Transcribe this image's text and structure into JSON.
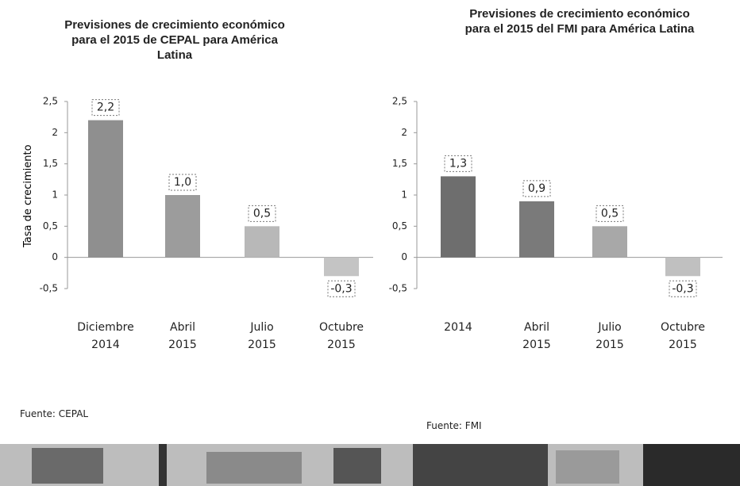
{
  "chart_data": [
    {
      "type": "bar",
      "title": "Previsiones de crecimiento económico para el 2015 de CEPAL para América Latina",
      "y_label": "Tasa de crecimiento",
      "categories": [
        "Diciembre\n2014",
        "Abril\n2015",
        "Julio\n2015",
        "Octubre\n2015"
      ],
      "values": [
        2.2,
        1.0,
        0.5,
        -0.3
      ],
      "value_labels": [
        "2,2",
        "1,0",
        "0,5",
        "-0,3"
      ],
      "colors": [
        "#8f8f8f",
        "#9c9c9c",
        "#b8b8b8",
        "#c4c4c4"
      ],
      "ylim": [
        -0.5,
        2.5
      ],
      "yticks": [
        {
          "value": -0.5,
          "label": "-0,5"
        },
        0,
        {
          "value": 0.5,
          "label": "0,5"
        },
        1,
        {
          "value": 1.5,
          "label": "1,5"
        },
        2,
        {
          "value": 2.5,
          "label": "2,5"
        }
      ],
      "source": "Fuente: CEPAL"
    },
    {
      "type": "bar",
      "title": "Previsiones de crecimiento económico para el 2015 del FMI para América Latina",
      "categories": [
        "2014",
        "Abril\n2015",
        "Julio\n2015",
        "Octubre\n2015"
      ],
      "values": [
        1.3,
        0.9,
        0.5,
        -0.3
      ],
      "value_labels": [
        "1,3",
        "0,9",
        "0,5",
        "-0,3"
      ],
      "colors": [
        "#6e6e6e",
        "#7a7a7a",
        "#a8a8a8",
        "#c0c0c0"
      ],
      "ylim": [
        -0.5,
        2.5
      ],
      "yticks": [
        {
          "value": -0.5,
          "label": "-0,5"
        },
        0,
        {
          "value": 0.5,
          "label": "0,5"
        },
        1,
        {
          "value": 1.5,
          "label": "1,5"
        },
        2,
        {
          "value": 2.5,
          "label": "2,5"
        }
      ],
      "source": "Fuente: FMI"
    }
  ]
}
